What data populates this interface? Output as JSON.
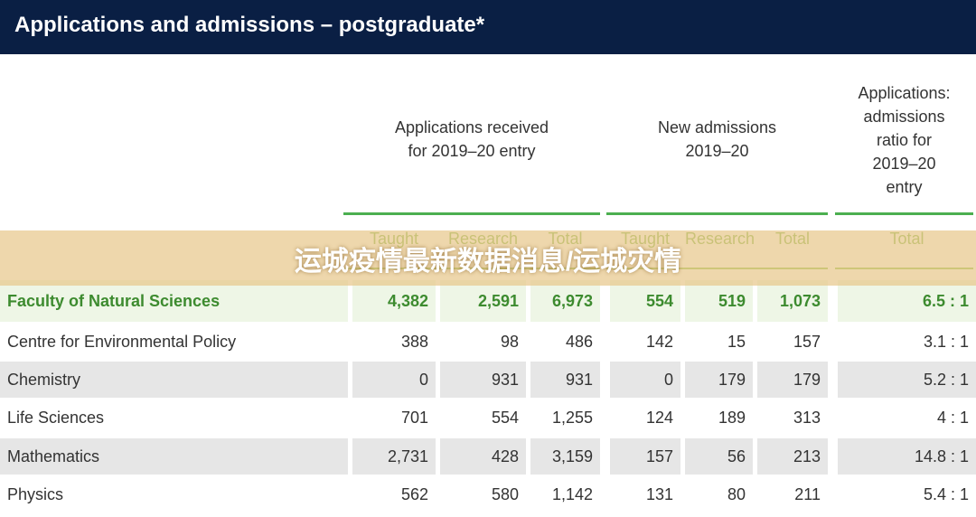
{
  "header": {
    "title": "Applications and admissions – postgraduate*"
  },
  "table": {
    "groups": [
      {
        "lines": [
          "Applications received",
          "for  2019–20 entry"
        ],
        "columns": [
          "Taught",
          "Research",
          "Total"
        ]
      },
      {
        "lines": [
          "New admissions",
          "2019–20"
        ],
        "columns": [
          "Taught",
          "Research",
          "Total"
        ]
      },
      {
        "lines": [
          "Applications:",
          "admissions",
          "ratio for",
          "2019–20",
          "entry"
        ],
        "columns": [
          "Total"
        ]
      }
    ],
    "faculty": [
      "Faculty of Natural Sciences",
      "4,382",
      "2,591",
      "6,973",
      "554",
      "519",
      "1,073",
      "6.5 : 1"
    ],
    "rows": [
      [
        "Centre for Environmental Policy",
        "388",
        "98",
        "486",
        "142",
        "15",
        "157",
        "3.1 : 1"
      ],
      [
        "Chemistry",
        "0",
        "931",
        "931",
        "0",
        "179",
        "179",
        "5.2 : 1"
      ],
      [
        "Life Sciences",
        "701",
        "554",
        "1,255",
        "124",
        "189",
        "313",
        "4 : 1"
      ],
      [
        "Mathematics",
        "2,731",
        "428",
        "3,159",
        "157",
        "56",
        "213",
        "14.8 : 1"
      ],
      [
        "Physics",
        "562",
        "580",
        "1,142",
        "131",
        "80",
        "211",
        "5.4 : 1"
      ]
    ]
  },
  "banner": {
    "text": "运城疫情最新数据消息/运城灾情"
  }
}
